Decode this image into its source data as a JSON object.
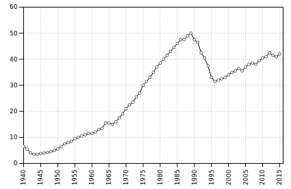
{
  "chart_data": {
    "type": "line",
    "x": [
      1940,
      1941,
      1942,
      1943,
      1944,
      1945,
      1946,
      1947,
      1948,
      1949,
      1950,
      1951,
      1952,
      1953,
      1954,
      1955,
      1956,
      1957,
      1958,
      1959,
      1960,
      1961,
      1962,
      1963,
      1964,
      1965,
      1966,
      1967,
      1968,
      1969,
      1970,
      1971,
      1972,
      1973,
      1974,
      1975,
      1976,
      1977,
      1978,
      1979,
      1980,
      1981,
      1982,
      1983,
      1984,
      1985,
      1986,
      1987,
      1988,
      1989,
      1990,
      1991,
      1992,
      1993,
      1994,
      1995,
      1996,
      1997,
      1998,
      1999,
      2000,
      2001,
      2002,
      2003,
      2004,
      2005,
      2006,
      2007,
      2008,
      2009,
      2010,
      2011,
      2012,
      2013,
      2014,
      2015
    ],
    "values": [
      6.5,
      5.5,
      4.0,
      3.5,
      3.5,
      3.8,
      4.0,
      4.2,
      4.5,
      5.0,
      5.5,
      6.5,
      7.5,
      8.0,
      8.5,
      9.5,
      10.0,
      10.5,
      11.0,
      11.5,
      11.5,
      12.0,
      13.0,
      13.5,
      15.5,
      15.5,
      15.0,
      16.0,
      17.5,
      19.0,
      21.0,
      22.5,
      23.5,
      25.5,
      27.0,
      30.0,
      31.5,
      33.0,
      35.0,
      37.0,
      38.5,
      40.0,
      41.5,
      43.0,
      44.5,
      46.0,
      47.5,
      47.5,
      49.0,
      50.0,
      47.5,
      46.5,
      42.5,
      40.5,
      37.5,
      33.0,
      31.5,
      32.0,
      32.5,
      33.0,
      34.0,
      35.0,
      35.5,
      36.5,
      35.5,
      37.0,
      38.0,
      38.5,
      38.0,
      39.5,
      40.5,
      41.0,
      42.5,
      41.5,
      41.0,
      42.0
    ],
    "color": "#000000",
    "marker": "circle",
    "xlim": [
      1940,
      2016
    ],
    "xticks": [
      1940,
      1945,
      1950,
      1955,
      1960,
      1965,
      1970,
      1975,
      1980,
      1985,
      1990,
      1995,
      2000,
      2005,
      2010,
      2015
    ],
    "ylim": [
      0,
      60
    ],
    "yticks": [
      0,
      10,
      20,
      30,
      40,
      50,
      60
    ],
    "grid": true
  }
}
